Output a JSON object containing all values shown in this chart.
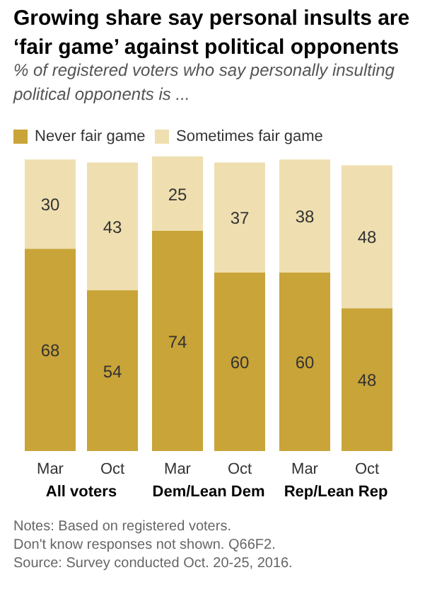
{
  "chart_data": {
    "type": "bar",
    "stacked": true,
    "title": "Growing share say personal insults are ‘fair game’ against political opponents",
    "subtitle": "% of registered voters who say personally insulting political opponents is ...",
    "categories": [
      "Mar",
      "Oct",
      "Mar",
      "Oct",
      "Mar",
      "Oct"
    ],
    "series": [
      {
        "name": "Never fair game",
        "color": "#c9a438",
        "values": [
          68,
          54,
          74,
          60,
          60,
          48
        ]
      },
      {
        "name": "Sometimes fair game",
        "color": "#efdfb0",
        "values": [
          30,
          43,
          25,
          37,
          38,
          48
        ]
      }
    ],
    "data_labels": true,
    "legend": "top",
    "grid": false,
    "annotations": [
      "All voters",
      "Dem/Lean Dem",
      "Rep/Lean Rep",
      "Notes: Based on registered voters.",
      "Don't know responses not shown. Q66F2.",
      "Source: Survey conducted Oct. 20-25, 2016."
    ]
  }
}
